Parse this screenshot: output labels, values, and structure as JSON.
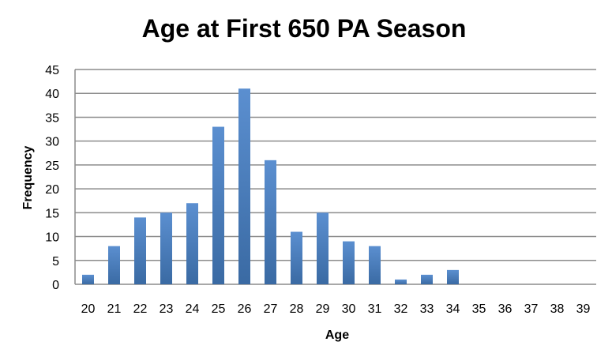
{
  "chart_data": {
    "type": "bar",
    "title": "Age at First 650 PA Season",
    "xlabel": "Age",
    "ylabel": "Frequency",
    "ylim": [
      0,
      45
    ],
    "yticks": [
      0,
      5,
      10,
      15,
      20,
      25,
      30,
      35,
      40,
      45
    ],
    "grid": true,
    "legend": "none",
    "categories": [
      "20",
      "21",
      "22",
      "23",
      "24",
      "25",
      "26",
      "27",
      "28",
      "29",
      "30",
      "31",
      "32",
      "33",
      "34",
      "35",
      "36",
      "37",
      "38",
      "39"
    ],
    "values": [
      2,
      8,
      14,
      15,
      17,
      33,
      41,
      26,
      11,
      15,
      9,
      8,
      1,
      2,
      3,
      0,
      0,
      0,
      0,
      0
    ],
    "bar_color": "#4f81bd",
    "bar_color_dark": "#3a6aa3"
  }
}
